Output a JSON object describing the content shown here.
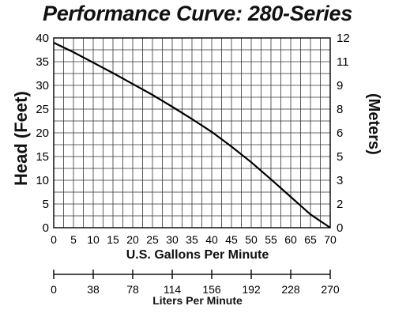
{
  "chart_data": {
    "type": "line",
    "title": "Performance Curve: 280-Series",
    "xlabel": "U.S. Gallons Per Minute",
    "ylabel": "Head (Feet)",
    "y2label": "(Meters)",
    "x2label": "Liters Per Minute",
    "xlim": [
      0,
      70
    ],
    "ylim": [
      0,
      40
    ],
    "x_ticks": [
      0,
      5,
      10,
      15,
      20,
      25,
      30,
      35,
      40,
      45,
      50,
      55,
      60,
      65,
      70
    ],
    "y_ticks": [
      0,
      5,
      10,
      15,
      20,
      25,
      30,
      35,
      40
    ],
    "y2_ticks": [
      0,
      2,
      3,
      5,
      6,
      8,
      9,
      11,
      12
    ],
    "x2_ticks": [
      0,
      38,
      78,
      114,
      156,
      192,
      228,
      270
    ],
    "grid": true,
    "series": [
      {
        "x": [
          0,
          5,
          10,
          15,
          20,
          25,
          30,
          35,
          40,
          45,
          50,
          55,
          60,
          65,
          70
        ],
        "y": [
          39,
          37,
          34.8,
          32.6,
          30.3,
          28,
          25.5,
          22.9,
          20.2,
          17.1,
          13.8,
          10.2,
          6.5,
          2.8,
          0
        ]
      }
    ]
  }
}
